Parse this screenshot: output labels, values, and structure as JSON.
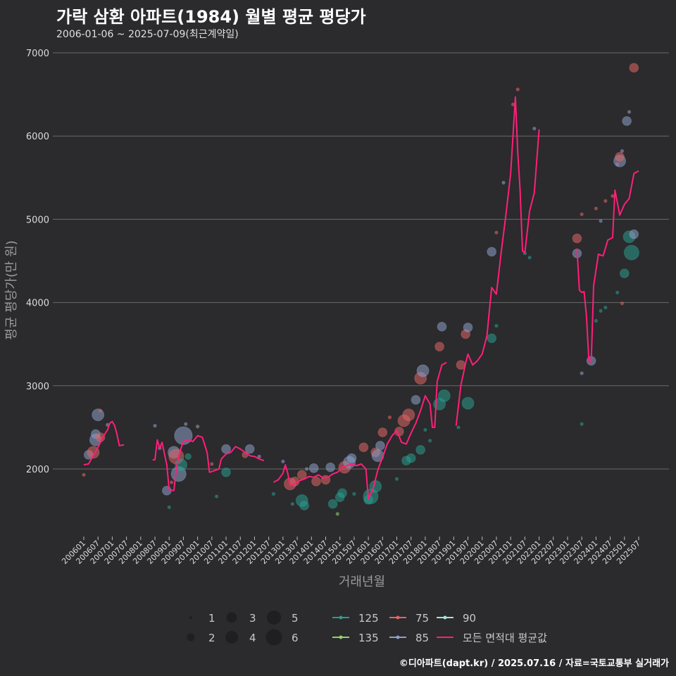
{
  "chart_data": {
    "type": "scatter",
    "title": "가락 삼환 아파트(1984) 월별 평균 평당가",
    "subtitle": "2006-01-06 ~ 2025-07-09(최근계약일)",
    "xlabel": "거래년월",
    "ylabel": "평균 평당가(만 원)",
    "ylim": [
      1200,
      7000
    ],
    "yticks": [
      2000,
      3000,
      4000,
      5000,
      6000,
      7000
    ],
    "xrange_months": [
      "200512",
      "202508"
    ],
    "xticks": [
      "200601",
      "200607",
      "200701",
      "200707",
      "200801",
      "200807",
      "200901",
      "200907",
      "201001",
      "201007",
      "201101",
      "201107",
      "201201",
      "201207",
      "201301",
      "201307",
      "201401",
      "201407",
      "201501",
      "201507",
      "201601",
      "201607",
      "201701",
      "201707",
      "201801",
      "201807",
      "201901",
      "201907",
      "202001",
      "202007",
      "202101",
      "202107",
      "202201",
      "202207",
      "202301",
      "202307",
      "202401",
      "202407",
      "202501",
      "202507"
    ],
    "colors": {
      "125": "#2a9d8f",
      "135": "#8fd36a",
      "75": "#e06666",
      "85": "#8da0cb",
      "90": "#a6e0e0",
      "avg": "#ff1f7a"
    },
    "size_legend": {
      "labels": [
        "1",
        "2",
        "3",
        "4",
        "5",
        "6"
      ],
      "values": [
        1,
        2,
        3,
        4,
        5,
        6
      ]
    },
    "color_legend": [
      {
        "key": "125",
        "label": "125"
      },
      {
        "key": "135",
        "label": "135"
      },
      {
        "key": "75",
        "label": "75"
      },
      {
        "key": "85",
        "label": "85"
      },
      {
        "key": "90",
        "label": "90"
      },
      {
        "key": "avg",
        "label": "모든 면적대 평균값"
      }
    ],
    "avg_line": [
      [
        [
          "200601",
          2050
        ],
        [
          "200603",
          2060
        ],
        [
          "200605",
          2160
        ],
        [
          "200607",
          2260
        ],
        [
          "200609",
          2380
        ],
        [
          "200611",
          2470
        ],
        [
          "200612",
          2550
        ],
        [
          "200701",
          2570
        ],
        [
          "200702",
          2520
        ],
        [
          "200703",
          2420
        ],
        [
          "200704",
          2280
        ],
        [
          "200706",
          2290
        ]
      ],
      [
        [
          "200806",
          2110
        ],
        [
          "200807",
          2110
        ],
        [
          "200808",
          2350
        ],
        [
          "200809",
          2250
        ],
        [
          "200810",
          2320
        ],
        [
          "200812",
          2050
        ],
        [
          "200901",
          1750
        ],
        [
          "200903",
          1740
        ],
        [
          "200904",
          2000
        ],
        [
          "200905",
          2150
        ],
        [
          "200906",
          2250
        ],
        [
          "200907",
          2330
        ],
        [
          "200909",
          2350
        ],
        [
          "200911",
          2330
        ],
        [
          "201001",
          2400
        ],
        [
          "201003",
          2380
        ],
        [
          "201005",
          2200
        ],
        [
          "201006",
          1960
        ],
        [
          "201008",
          1980
        ],
        [
          "201010",
          2000
        ],
        [
          "201011",
          2120
        ],
        [
          "201101",
          2180
        ],
        [
          "201103",
          2200
        ],
        [
          "201105",
          2270
        ],
        [
          "201107",
          2240
        ],
        [
          "201109",
          2200
        ],
        [
          "201111",
          2160
        ],
        [
          "201201",
          2150
        ],
        [
          "201203",
          2120
        ],
        [
          "201205",
          2100
        ]
      ],
      [
        [
          "201209",
          1840
        ],
        [
          "201211",
          1870
        ],
        [
          "201301",
          1950
        ],
        [
          "201302",
          2050
        ],
        [
          "201303",
          1950
        ],
        [
          "201304",
          1800
        ],
        [
          "201306",
          1820
        ],
        [
          "201308",
          1860
        ],
        [
          "201310",
          1880
        ],
        [
          "201312",
          1910
        ],
        [
          "201402",
          1900
        ],
        [
          "201404",
          1930
        ],
        [
          "201406",
          1890
        ],
        [
          "201408",
          1900
        ],
        [
          "201410",
          1940
        ],
        [
          "201412",
          1960
        ],
        [
          "201502",
          2020
        ],
        [
          "201504",
          2040
        ],
        [
          "201506",
          2060
        ],
        [
          "201508",
          2040
        ],
        [
          "201510",
          2060
        ],
        [
          "201512",
          2000
        ],
        [
          "201601",
          1640
        ],
        [
          "201603",
          1760
        ],
        [
          "201605",
          1990
        ],
        [
          "201607",
          2140
        ],
        [
          "201609",
          2300
        ],
        [
          "201611",
          2400
        ],
        [
          "201701",
          2460
        ],
        [
          "201703",
          2320
        ],
        [
          "201705",
          2300
        ],
        [
          "201707",
          2430
        ],
        [
          "201709",
          2550
        ],
        [
          "201711",
          2700
        ],
        [
          "201801",
          2880
        ],
        [
          "201803",
          2780
        ],
        [
          "201804",
          2500
        ],
        [
          "201805",
          2500
        ],
        [
          "201806",
          3050
        ],
        [
          "201808",
          3250
        ],
        [
          "201810",
          3280
        ]
      ],
      [
        [
          "201902",
          2520
        ],
        [
          "201904",
          3000
        ],
        [
          "201906",
          3270
        ],
        [
          "201907",
          3380
        ],
        [
          "201909",
          3250
        ],
        [
          "201911",
          3300
        ],
        [
          "202001",
          3380
        ],
        [
          "202003",
          3600
        ],
        [
          "202005",
          4180
        ],
        [
          "202007",
          4100
        ],
        [
          "202009",
          4600
        ],
        [
          "202011",
          5050
        ],
        [
          "202101",
          5550
        ],
        [
          "202103",
          6470
        ],
        [
          "202104",
          5800
        ],
        [
          "202105",
          5350
        ],
        [
          "202106",
          4620
        ],
        [
          "202107",
          4600
        ],
        [
          "202109",
          5100
        ],
        [
          "202111",
          5320
        ],
        [
          "202201",
          6080
        ]
      ],
      [
        [
          "202305",
          4650
        ],
        [
          "202306",
          4150
        ],
        [
          "202307",
          4120
        ],
        [
          "202308",
          4130
        ],
        [
          "202309",
          3830
        ],
        [
          "202310",
          3300
        ],
        [
          "202311",
          3280
        ],
        [
          "202312",
          4200
        ],
        [
          "202402",
          4580
        ],
        [
          "202404",
          4560
        ],
        [
          "202406",
          4750
        ],
        [
          "202408",
          4780
        ],
        [
          "202409",
          5350
        ],
        [
          "202411",
          5050
        ],
        [
          "202501",
          5180
        ],
        [
          "202503",
          5250
        ],
        [
          "202505",
          5550
        ],
        [
          "202507",
          5580
        ]
      ]
    ],
    "points": [
      {
        "m": "200601",
        "v": 1930,
        "s": 1,
        "c": "75"
      },
      {
        "m": "200603",
        "v": 2170,
        "s": 3,
        "c": "85"
      },
      {
        "m": "200605",
        "v": 2200,
        "s": 4,
        "c": "75"
      },
      {
        "m": "200606",
        "v": 2350,
        "s": 4,
        "c": "85"
      },
      {
        "m": "200606",
        "v": 2420,
        "s": 3,
        "c": "85"
      },
      {
        "m": "200607",
        "v": 2650,
        "s": 4,
        "c": "85"
      },
      {
        "m": "200608",
        "v": 2700,
        "s": 1,
        "c": "75"
      },
      {
        "m": "200608",
        "v": 2380,
        "s": 3,
        "c": "75"
      },
      {
        "m": "200611",
        "v": 2530,
        "s": 1,
        "c": "85"
      },
      {
        "m": "200807",
        "v": 2520,
        "s": 1,
        "c": "85"
      },
      {
        "m": "200809",
        "v": 2250,
        "s": 1,
        "c": "85"
      },
      {
        "m": "200812",
        "v": 1740,
        "s": 3,
        "c": "85"
      },
      {
        "m": "200901",
        "v": 1540,
        "s": 1,
        "c": "125"
      },
      {
        "m": "200902",
        "v": 1840,
        "s": 1,
        "c": "75"
      },
      {
        "m": "200903",
        "v": 2200,
        "s": 4,
        "c": "85"
      },
      {
        "m": "200904",
        "v": 2150,
        "s": 5,
        "c": "75"
      },
      {
        "m": "200905",
        "v": 1940,
        "s": 5,
        "c": "85"
      },
      {
        "m": "200906",
        "v": 2050,
        "s": 4,
        "c": "125"
      },
      {
        "m": "200907",
        "v": 2400,
        "s": 6,
        "c": "85"
      },
      {
        "m": "200908",
        "v": 2540,
        "s": 1,
        "c": "85"
      },
      {
        "m": "200909",
        "v": 2150,
        "s": 2,
        "c": "125"
      },
      {
        "m": "201001",
        "v": 2510,
        "s": 1,
        "c": "85"
      },
      {
        "m": "201007",
        "v": 2060,
        "s": 1,
        "c": "75"
      },
      {
        "m": "201009",
        "v": 1670,
        "s": 1,
        "c": "125"
      },
      {
        "m": "201101",
        "v": 1960,
        "s": 3,
        "c": "125"
      },
      {
        "m": "201101",
        "v": 2240,
        "s": 3,
        "c": "85"
      },
      {
        "m": "201109",
        "v": 2170,
        "s": 2,
        "c": "75"
      },
      {
        "m": "201111",
        "v": 2240,
        "s": 3,
        "c": "85"
      },
      {
        "m": "201203",
        "v": 2150,
        "s": 1,
        "c": "85"
      },
      {
        "m": "201209",
        "v": 1700,
        "s": 1,
        "c": "125"
      },
      {
        "m": "201301",
        "v": 2090,
        "s": 1,
        "c": "85"
      },
      {
        "m": "201304",
        "v": 1820,
        "s": 4,
        "c": "75"
      },
      {
        "m": "201305",
        "v": 1580,
        "s": 1,
        "c": "125"
      },
      {
        "m": "201306",
        "v": 1850,
        "s": 3,
        "c": "75"
      },
      {
        "m": "201309",
        "v": 1620,
        "s": 4,
        "c": "125"
      },
      {
        "m": "201310",
        "v": 1560,
        "s": 3,
        "c": "125"
      },
      {
        "m": "201309",
        "v": 1930,
        "s": 3,
        "c": "75"
      },
      {
        "m": "201311",
        "v": 2000,
        "s": 1,
        "c": "85"
      },
      {
        "m": "201402",
        "v": 2010,
        "s": 3,
        "c": "85"
      },
      {
        "m": "201403",
        "v": 1850,
        "s": 3,
        "c": "75"
      },
      {
        "m": "201407",
        "v": 1870,
        "s": 3,
        "c": "75"
      },
      {
        "m": "201409",
        "v": 2020,
        "s": 3,
        "c": "85"
      },
      {
        "m": "201410",
        "v": 1580,
        "s": 3,
        "c": "125"
      },
      {
        "m": "201412",
        "v": 1460,
        "s": 1,
        "c": "135"
      },
      {
        "m": "201501",
        "v": 1660,
        "s": 3,
        "c": "125"
      },
      {
        "m": "201502",
        "v": 1710,
        "s": 3,
        "c": "125"
      },
      {
        "m": "201503",
        "v": 2020,
        "s": 4,
        "c": "75"
      },
      {
        "m": "201505",
        "v": 2080,
        "s": 4,
        "c": "85"
      },
      {
        "m": "201506",
        "v": 2130,
        "s": 3,
        "c": "85"
      },
      {
        "m": "201507",
        "v": 1700,
        "s": 1,
        "c": "125"
      },
      {
        "m": "201511",
        "v": 2260,
        "s": 3,
        "c": "75"
      },
      {
        "m": "201601",
        "v": 1630,
        "s": 3,
        "c": "125"
      },
      {
        "m": "201602",
        "v": 1670,
        "s": 5,
        "c": "125"
      },
      {
        "m": "201604",
        "v": 1790,
        "s": 4,
        "c": "125"
      },
      {
        "m": "201604",
        "v": 2200,
        "s": 3,
        "c": "75"
      },
      {
        "m": "201605",
        "v": 2160,
        "s": 4,
        "c": "85"
      },
      {
        "m": "201606",
        "v": 2280,
        "s": 3,
        "c": "85"
      },
      {
        "m": "201607",
        "v": 2440,
        "s": 3,
        "c": "75"
      },
      {
        "m": "201610",
        "v": 2620,
        "s": 1,
        "c": "75"
      },
      {
        "m": "201701",
        "v": 1880,
        "s": 1,
        "c": "125"
      },
      {
        "m": "201702",
        "v": 2450,
        "s": 3,
        "c": "75"
      },
      {
        "m": "201704",
        "v": 2580,
        "s": 4,
        "c": "75"
      },
      {
        "m": "201705",
        "v": 2100,
        "s": 3,
        "c": "125"
      },
      {
        "m": "201706",
        "v": 2650,
        "s": 4,
        "c": "75"
      },
      {
        "m": "201707",
        "v": 2130,
        "s": 3,
        "c": "125"
      },
      {
        "m": "201709",
        "v": 2830,
        "s": 3,
        "c": "85"
      },
      {
        "m": "201711",
        "v": 2230,
        "s": 3,
        "c": "125"
      },
      {
        "m": "201711",
        "v": 3090,
        "s": 4,
        "c": "75"
      },
      {
        "m": "201712",
        "v": 3180,
        "s": 4,
        "c": "85"
      },
      {
        "m": "201801",
        "v": 2470,
        "s": 1,
        "c": "125"
      },
      {
        "m": "201803",
        "v": 2340,
        "s": 1,
        "c": "125"
      },
      {
        "m": "201807",
        "v": 2780,
        "s": 4,
        "c": "125"
      },
      {
        "m": "201807",
        "v": 3470,
        "s": 3,
        "c": "75"
      },
      {
        "m": "201808",
        "v": 3710,
        "s": 3,
        "c": "85"
      },
      {
        "m": "201809",
        "v": 2880,
        "s": 4,
        "c": "125"
      },
      {
        "m": "201903",
        "v": 2500,
        "s": 1,
        "c": "125"
      },
      {
        "m": "201904",
        "v": 3250,
        "s": 3,
        "c": "75"
      },
      {
        "m": "201906",
        "v": 3620,
        "s": 3,
        "c": "75"
      },
      {
        "m": "201907",
        "v": 2790,
        "s": 4,
        "c": "125"
      },
      {
        "m": "201907",
        "v": 3700,
        "s": 3,
        "c": "85"
      },
      {
        "m": "202005",
        "v": 3570,
        "s": 3,
        "c": "125"
      },
      {
        "m": "202005",
        "v": 4610,
        "s": 3,
        "c": "85"
      },
      {
        "m": "202007",
        "v": 3720,
        "s": 1,
        "c": "125"
      },
      {
        "m": "202007",
        "v": 4840,
        "s": 1,
        "c": "75"
      },
      {
        "m": "202010",
        "v": 5440,
        "s": 1,
        "c": "85"
      },
      {
        "m": "202102",
        "v": 6380,
        "s": 1,
        "c": "75"
      },
      {
        "m": "202104",
        "v": 6560,
        "s": 1,
        "c": "75"
      },
      {
        "m": "202107",
        "v": 4590,
        "s": 1,
        "c": "125"
      },
      {
        "m": "202109",
        "v": 4540,
        "s": 1,
        "c": "125"
      },
      {
        "m": "202111",
        "v": 6090,
        "s": 1,
        "c": "85"
      },
      {
        "m": "202305",
        "v": 4770,
        "s": 3,
        "c": "75"
      },
      {
        "m": "202305",
        "v": 4590,
        "s": 3,
        "c": "85"
      },
      {
        "m": "202307",
        "v": 3150,
        "s": 1,
        "c": "85"
      },
      {
        "m": "202307",
        "v": 2540,
        "s": 1,
        "c": "125"
      },
      {
        "m": "202307",
        "v": 5060,
        "s": 1,
        "c": "75"
      },
      {
        "m": "202311",
        "v": 3300,
        "s": 3,
        "c": "85"
      },
      {
        "m": "202401",
        "v": 3780,
        "s": 1,
        "c": "125"
      },
      {
        "m": "202401",
        "v": 5130,
        "s": 1,
        "c": "75"
      },
      {
        "m": "202403",
        "v": 3900,
        "s": 1,
        "c": "125"
      },
      {
        "m": "202403",
        "v": 4980,
        "s": 1,
        "c": "85"
      },
      {
        "m": "202405",
        "v": 3940,
        "s": 1,
        "c": "125"
      },
      {
        "m": "202405",
        "v": 5220,
        "s": 1,
        "c": "75"
      },
      {
        "m": "202408",
        "v": 5280,
        "s": 1,
        "c": "75"
      },
      {
        "m": "202410",
        "v": 4120,
        "s": 1,
        "c": "125"
      },
      {
        "m": "202410",
        "v": 5660,
        "s": 1,
        "c": "75"
      },
      {
        "m": "202411",
        "v": 5700,
        "s": 4,
        "c": "85"
      },
      {
        "m": "202411",
        "v": 5750,
        "s": 3,
        "c": "75"
      },
      {
        "m": "202412",
        "v": 5820,
        "s": 1,
        "c": "85"
      },
      {
        "m": "202412",
        "v": 3990,
        "s": 1,
        "c": "75"
      },
      {
        "m": "202501",
        "v": 4350,
        "s": 3,
        "c": "125"
      },
      {
        "m": "202502",
        "v": 6180,
        "s": 3,
        "c": "85"
      },
      {
        "m": "202503",
        "v": 6290,
        "s": 1,
        "c": "85"
      },
      {
        "m": "202503",
        "v": 4790,
        "s": 4,
        "c": "125"
      },
      {
        "m": "202504",
        "v": 4600,
        "s": 5,
        "c": "125"
      },
      {
        "m": "202505",
        "v": 4820,
        "s": 3,
        "c": "85"
      },
      {
        "m": "202505",
        "v": 6820,
        "s": 3,
        "c": "75"
      }
    ],
    "credit": "©디아파트(dapt.kr) / 2025.07.16 / 자료=국토교통부 실거래가"
  }
}
